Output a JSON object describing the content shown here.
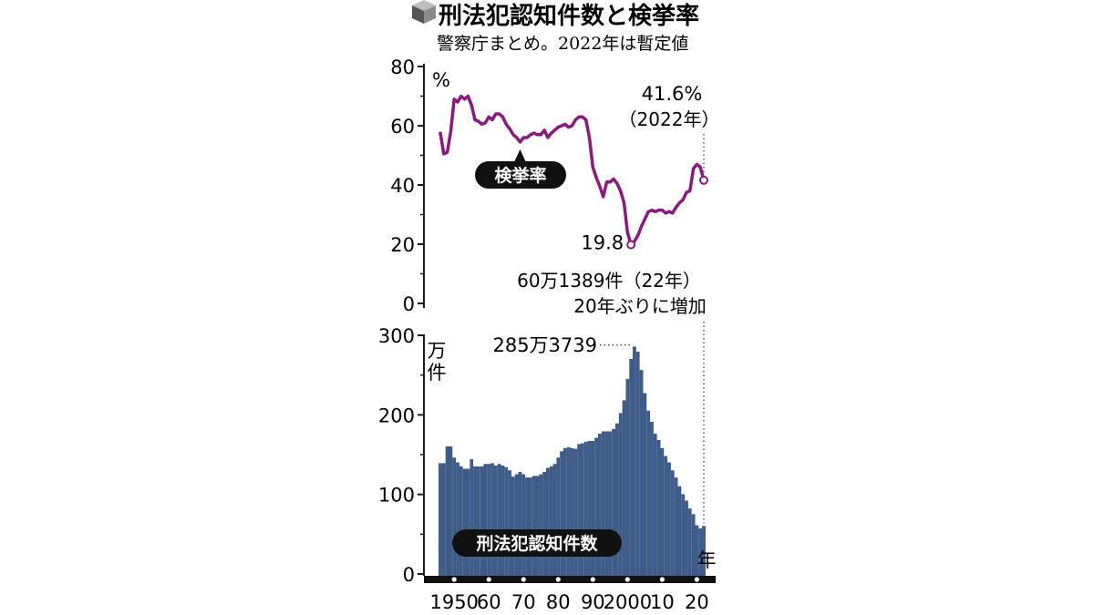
{
  "header": {
    "title": "刑法犯認知件数と検挙率",
    "subtitle": "警察庁まとめ。2022年は暫定値"
  },
  "colors": {
    "line": "#8b1a7f",
    "bar": "#3d5e8c",
    "bar_edge": "#2b4068",
    "text": "#1a1a1a",
    "label_bg": "#111111",
    "background": "#ffffff"
  },
  "icons": {
    "title_marker": "cube-icon"
  },
  "chart_data": [
    {
      "type": "line",
      "series": [
        {
          "name": "検挙率",
          "x": [
            1946,
            1947,
            1948,
            1949,
            1950,
            1951,
            1952,
            1953,
            1954,
            1955,
            1956,
            1957,
            1958,
            1959,
            1960,
            1961,
            1962,
            1963,
            1964,
            1965,
            1966,
            1967,
            1968,
            1969,
            1970,
            1971,
            1972,
            1973,
            1974,
            1975,
            1976,
            1977,
            1978,
            1979,
            1980,
            1981,
            1982,
            1983,
            1984,
            1985,
            1986,
            1987,
            1988,
            1989,
            1990,
            1991,
            1992,
            1993,
            1994,
            1995,
            1996,
            1997,
            1998,
            1999,
            2000,
            2001,
            2002,
            2003,
            2004,
            2005,
            2006,
            2007,
            2008,
            2009,
            2010,
            2011,
            2012,
            2013,
            2014,
            2015,
            2016,
            2017,
            2018,
            2019,
            2020,
            2021,
            2022
          ],
          "values": [
            57.5,
            50.5,
            51,
            58,
            69,
            68,
            70,
            69,
            70,
            67,
            62,
            61.5,
            60.5,
            61,
            63,
            62,
            64,
            64,
            63,
            60.5,
            59,
            57,
            56,
            54.5,
            56,
            56,
            57,
            57.5,
            57,
            57,
            58.5,
            56,
            57.5,
            58.5,
            59.5,
            60,
            60.5,
            59.5,
            60,
            62,
            63,
            63,
            62,
            56,
            46,
            42.5,
            39.5,
            36,
            41,
            41,
            42,
            40.5,
            38,
            34,
            24,
            19.8,
            21,
            23,
            26,
            28.5,
            31,
            31.5,
            31,
            31.5,
            31.5,
            30.5,
            31,
            30.5,
            32.5,
            34,
            35,
            37.5,
            38,
            45.5,
            47,
            46,
            41.6
          ]
        }
      ],
      "ylim": [
        0,
        80
      ],
      "yticks": [
        "80",
        "60",
        "40",
        "20",
        "0"
      ],
      "yunit": "%",
      "annotations": {
        "min_value": "19.8",
        "last_value": "41.6%",
        "last_year": "（2022年）"
      }
    },
    {
      "type": "bar",
      "series": [
        {
          "name": "刑法犯認知件数",
          "x": [
            1946,
            1947,
            1948,
            1949,
            1950,
            1951,
            1952,
            1953,
            1954,
            1955,
            1956,
            1957,
            1958,
            1959,
            1960,
            1961,
            1962,
            1963,
            1964,
            1965,
            1966,
            1967,
            1968,
            1969,
            1970,
            1971,
            1972,
            1973,
            1974,
            1975,
            1976,
            1977,
            1978,
            1979,
            1980,
            1981,
            1982,
            1983,
            1984,
            1985,
            1986,
            1987,
            1988,
            1989,
            1990,
            1991,
            1992,
            1993,
            1994,
            1995,
            1996,
            1997,
            1998,
            1999,
            2000,
            2001,
            2002,
            2003,
            2004,
            2005,
            2006,
            2007,
            2008,
            2009,
            2010,
            2011,
            2012,
            2013,
            2014,
            2015,
            2016,
            2017,
            2018,
            2019,
            2020,
            2021,
            2022
          ],
          "values": [
            139,
            139,
            160,
            160,
            146,
            140,
            135,
            132,
            132,
            144,
            135,
            135,
            135,
            138,
            138,
            139,
            136,
            138,
            136,
            134,
            130,
            122,
            125,
            128,
            125,
            121,
            121,
            123,
            123,
            125,
            128,
            133,
            135,
            138,
            146,
            154,
            158,
            159,
            158,
            157,
            163,
            164,
            166,
            167,
            167,
            171,
            176,
            179,
            179,
            179,
            182,
            189,
            202,
            218,
            245,
            270,
            285.3739,
            279,
            256,
            227,
            205,
            191,
            176,
            168,
            158,
            148,
            140,
            130,
            121,
            110,
            100,
            92,
            82,
            75,
            61,
            57,
            60.1389
          ]
        }
      ],
      "ylim": [
        0,
        300
      ],
      "yticks": [
        "300",
        "200",
        "100",
        "0"
      ],
      "yunit": "万件",
      "xticks": [
        "1950",
        "60",
        "70",
        "80",
        "90",
        "2000",
        "10",
        "20"
      ],
      "xunit": "年",
      "annotations": {
        "peak_value": "285万3739",
        "last_value": "60万1389件（22年）",
        "last_note": "20年ぶりに増加"
      }
    }
  ]
}
